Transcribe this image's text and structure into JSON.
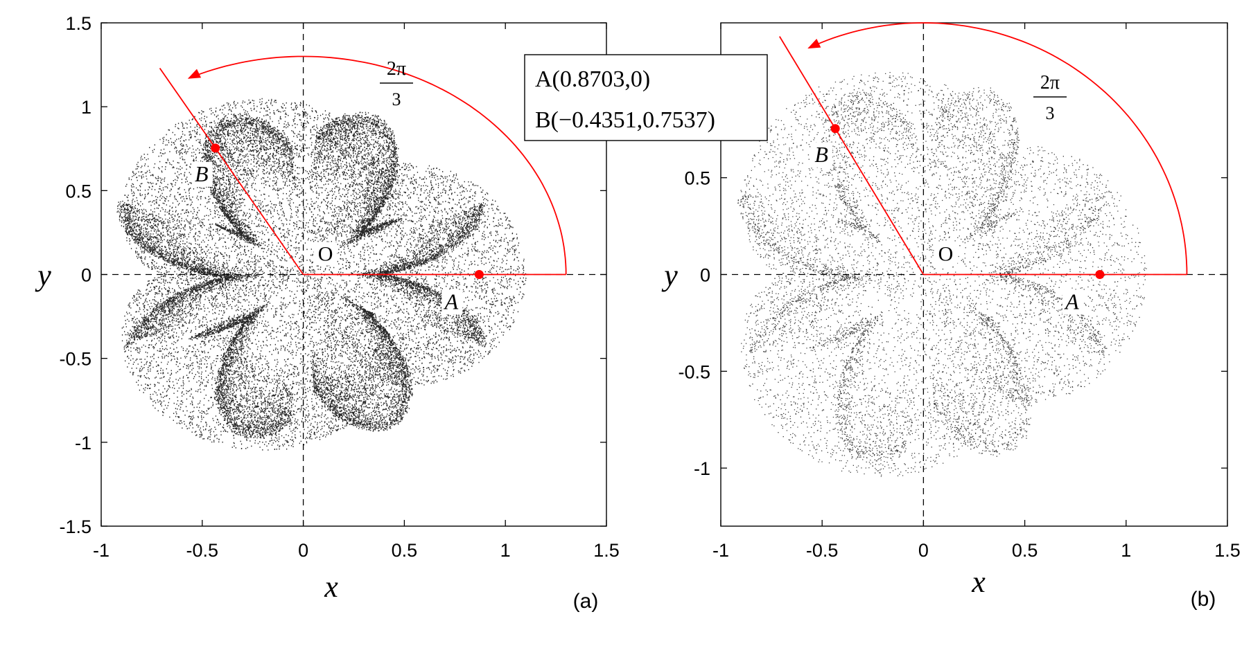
{
  "chart_data": [
    {
      "type": "scatter",
      "panel": "(a)",
      "xlabel": "x",
      "ylabel": "y",
      "xlim": [
        -1,
        1.5
      ],
      "ylim": [
        -1.5,
        1.5
      ],
      "xticks": [
        "-1",
        "-0.5",
        "0",
        "0.5",
        "1",
        "1.5"
      ],
      "yticks": [
        "-1.5",
        "-1",
        "-0.5",
        "0",
        "0.5",
        "1",
        "1.5"
      ],
      "density": "dense",
      "rotation_label": {
        "numerator": "2π",
        "denominator": "3"
      },
      "origin_label": "O",
      "points": [
        {
          "name": "A",
          "x": 0.8703,
          "y": 0
        },
        {
          "name": "B",
          "x": -0.4351,
          "y": 0.7537
        }
      ],
      "colors": {
        "marker": "#ff0000",
        "scatter": "#000000"
      }
    },
    {
      "type": "scatter",
      "panel": "(b)",
      "xlabel": "x",
      "ylabel": "y",
      "xlim": [
        -1,
        1.5
      ],
      "ylim": [
        -1.3,
        1.3
      ],
      "xticks": [
        "-1",
        "-0.5",
        "0",
        "0.5",
        "1",
        "1.5"
      ],
      "yticks": [
        "-1",
        "-0.5",
        "0",
        "0.5"
      ],
      "density": "sparse",
      "rotation_label": {
        "numerator": "2π",
        "denominator": "3"
      },
      "origin_label": "O",
      "points": [
        {
          "name": "A",
          "x": 0.8703,
          "y": 0
        },
        {
          "name": "B",
          "x": -0.4351,
          "y": 0.7537
        }
      ],
      "colors": {
        "marker": "#ff0000",
        "scatter": "#000000"
      }
    }
  ],
  "annotation_box": {
    "line1": "A(0.8703,0)",
    "line2": "B(−0.4351,0.7537)"
  }
}
